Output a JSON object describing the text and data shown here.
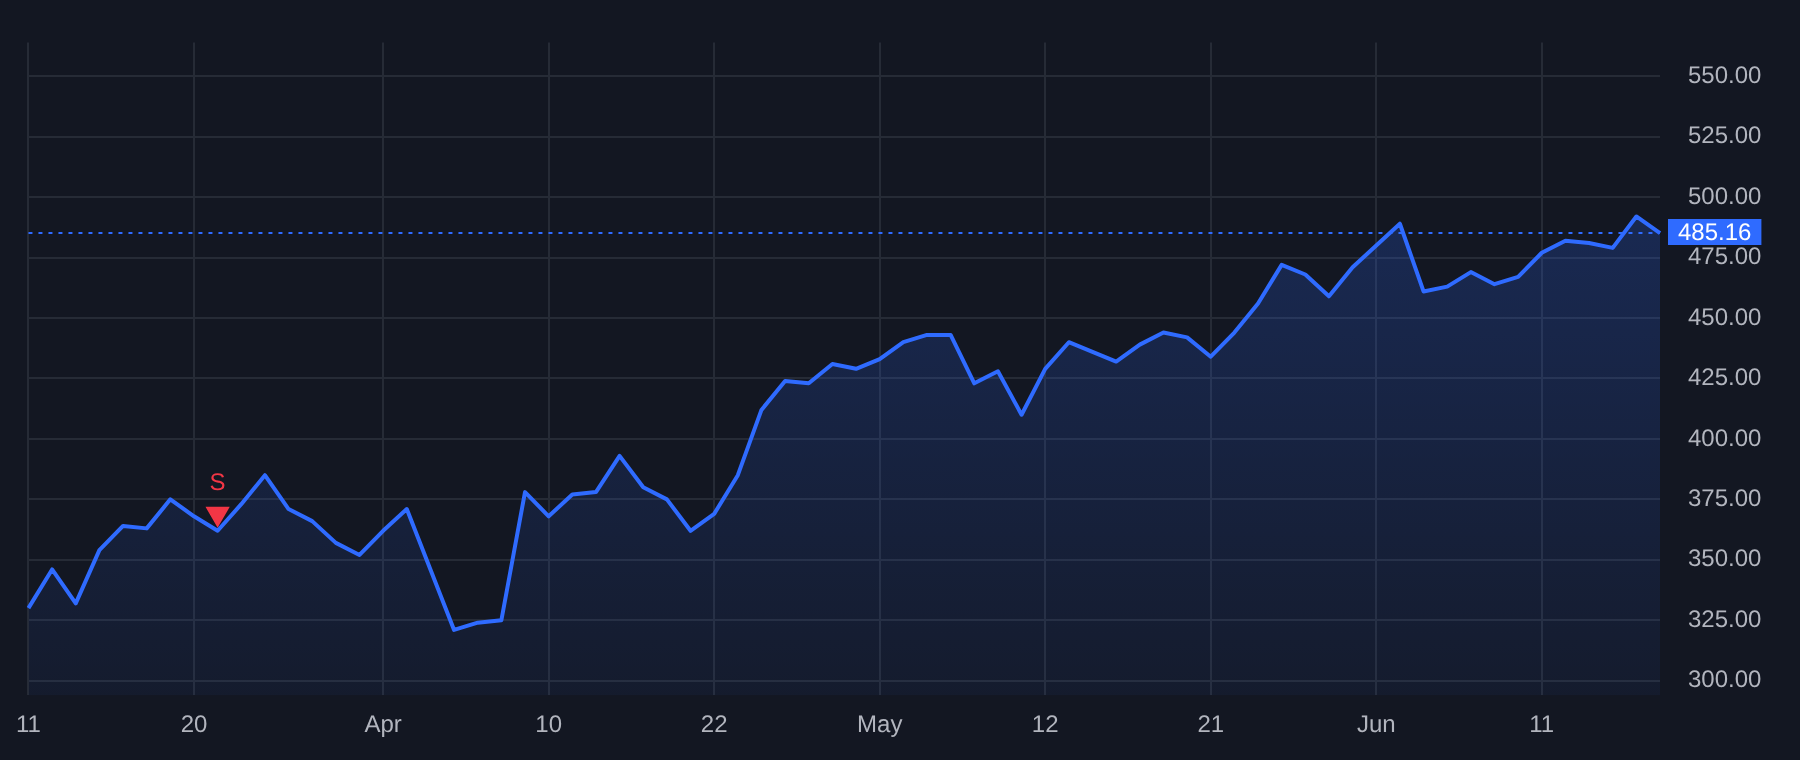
{
  "chart_data": {
    "type": "area",
    "categories": [
      "11",
      null,
      null,
      null,
      null,
      null,
      null,
      "20",
      null,
      null,
      null,
      null,
      null,
      null,
      null,
      "Apr",
      null,
      null,
      null,
      null,
      null,
      null,
      "10",
      null,
      null,
      null,
      null,
      null,
      null,
      "22",
      null,
      null,
      null,
      null,
      null,
      null,
      "May",
      null,
      null,
      null,
      null,
      null,
      null,
      "12",
      null,
      null,
      null,
      null,
      null,
      null,
      "21",
      null,
      null,
      null,
      null,
      null,
      null,
      "Jun",
      null,
      null,
      null,
      null,
      null,
      null,
      "11",
      null,
      null,
      null,
      null,
      null
    ],
    "series": [
      {
        "color": "#2f6bff",
        "values": [
          330,
          346,
          332,
          354,
          364,
          363,
          375,
          368,
          362,
          373,
          385,
          371,
          366,
          357,
          352,
          362,
          371,
          346,
          321,
          324,
          325,
          378,
          368,
          377,
          378,
          393,
          380,
          375,
          362,
          369,
          385,
          412,
          424,
          423,
          431,
          429,
          433,
          440,
          443,
          443,
          423,
          428,
          410,
          429,
          440,
          436,
          432,
          439,
          444,
          442,
          434,
          444,
          456,
          472,
          468,
          459,
          471,
          480,
          489,
          461,
          463,
          469,
          464,
          467,
          477,
          482,
          481,
          479,
          492,
          485.16
        ]
      },
      {
        "type": "scatter",
        "name": "S",
        "color": "#f23645",
        "marker": "triangle",
        "values": [
          null,
          null,
          null,
          null,
          null,
          null,
          null,
          null,
          369,
          null,
          null,
          null,
          null,
          null,
          null,
          null,
          null,
          null,
          null,
          null,
          null,
          null,
          null,
          null,
          null,
          null,
          null,
          null,
          null,
          null,
          null,
          null,
          null,
          null,
          null,
          null,
          null,
          null,
          null,
          null,
          null,
          null,
          null,
          null,
          null,
          null,
          null,
          null,
          null,
          null,
          null,
          null,
          null,
          null,
          null,
          null,
          null,
          null,
          null,
          null,
          null,
          null,
          null,
          null,
          null,
          null,
          null,
          null,
          null,
          null
        ]
      }
    ],
    "ylim": [
      294,
      564
    ],
    "yticks": [
      {
        "value": 300,
        "label": "300.00"
      },
      {
        "value": 325,
        "label": "325.00"
      },
      {
        "value": 350,
        "label": "350.00"
      },
      {
        "value": 375,
        "label": "375.00"
      },
      {
        "value": 400,
        "label": "400.00"
      },
      {
        "value": 425,
        "label": "425.00"
      },
      {
        "value": 450,
        "label": "450.00"
      },
      {
        "value": 475,
        "label": "475.00"
      },
      {
        "value": 500,
        "label": "500.00"
      },
      {
        "value": 525,
        "label": "525.00"
      },
      {
        "value": 550,
        "label": "550.00"
      }
    ],
    "ref_lines": [
      {
        "axis": "y",
        "value": 485.16,
        "label": "485.16",
        "color": "#2f6bff",
        "line_style": "dotted"
      }
    ],
    "grid": true,
    "legend": false
  }
}
